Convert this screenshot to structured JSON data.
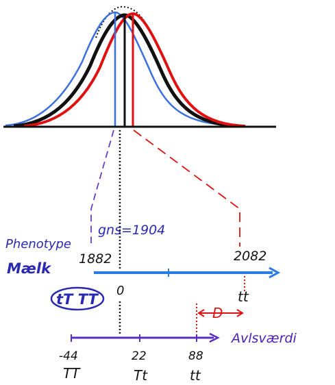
{
  "colors": {
    "blue_curve": "#3a6fe0",
    "black_curve": "#111111",
    "red_curve": "#e01010",
    "purple_lines": "#6a3cc8",
    "ink_blue": "#2a2ab0",
    "phenotype_axis": "#2b7be6",
    "genotype_axis": "#5a2ec0"
  },
  "labels": {
    "gns": "gns=1904",
    "phenotype_line1": "Phenotype",
    "phenotype_line2": "Mælk",
    "pheno_left": "1882",
    "pheno_right": "2082",
    "genotype_circle": "tT TT",
    "zero": "0",
    "tt_upper": "tt",
    "d_label": "D",
    "avlsvaerdi": "Avlsværdi",
    "tick_TT_value": "-44",
    "tick_TT_label": "TT",
    "tick_Tt_value": "22",
    "tick_Tt_label": "Tt",
    "tick_tt_value": "88",
    "tick_tt_label": "tt"
  }
}
